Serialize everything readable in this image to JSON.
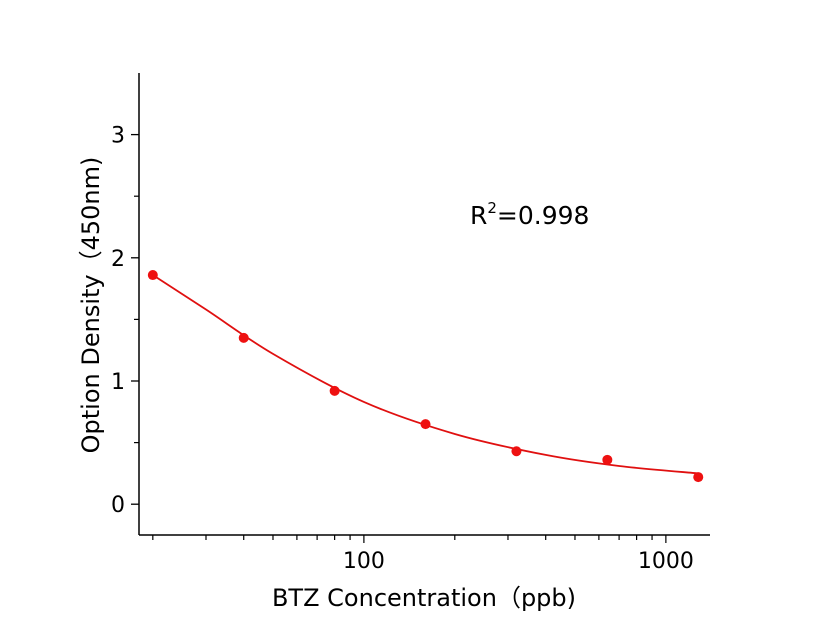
{
  "chart_data": {
    "type": "scatter",
    "title": "",
    "xlabel": "BTZ Concentration（ppb)",
    "ylabel": "Option Density（450nm)",
    "x_scale": "log",
    "xlim": [
      18,
      1400
    ],
    "ylim": [
      -0.25,
      3.5
    ],
    "x_ticks": [
      100,
      1000
    ],
    "x_tick_labels": [
      "100",
      "1000"
    ],
    "y_ticks": [
      0,
      1,
      2,
      3
    ],
    "y_tick_labels": [
      "0",
      "1",
      "2",
      "3"
    ],
    "grid": false,
    "legend": "none",
    "annotation": {
      "text_base": "R",
      "text_sup": "2",
      "text_rest": "=0.998"
    },
    "series": [
      {
        "x": [
          20,
          40,
          80,
          160,
          320,
          640,
          1280
        ],
        "y": [
          1.86,
          1.35,
          0.92,
          0.65,
          0.43,
          0.36,
          0.22
        ],
        "color": "#ee1111"
      }
    ],
    "fit_curve": {
      "x": [
        20,
        30,
        50,
        100,
        200,
        400,
        700,
        1280
      ],
      "y": [
        1.86,
        1.58,
        1.22,
        0.83,
        0.57,
        0.4,
        0.31,
        0.25
      ],
      "color": "#e01010"
    }
  }
}
